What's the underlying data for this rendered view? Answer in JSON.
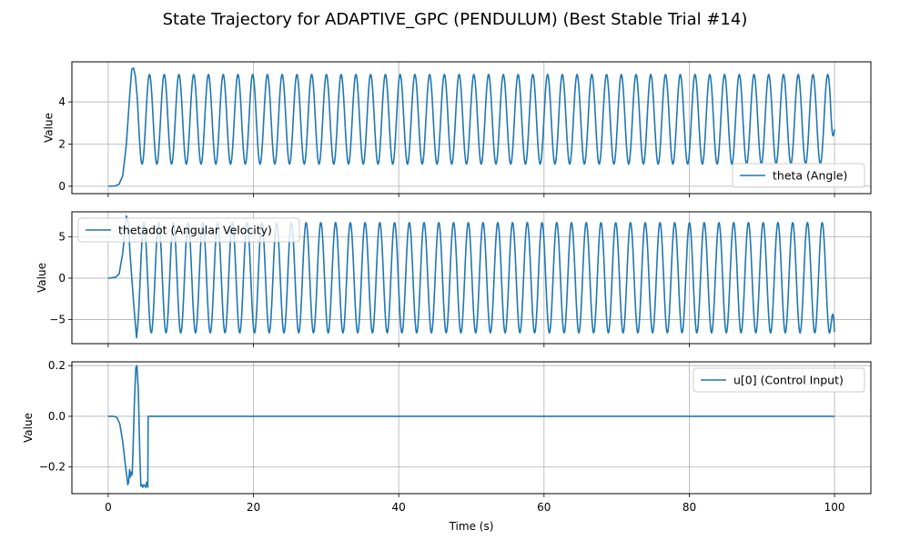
{
  "figure": {
    "title": "State Trajectory for ADAPTIVE_GPC (PENDULUM) (Best Stable Trial #14)",
    "colors": {
      "series": "#1f77b4",
      "grid": "#b0b0b0",
      "frame": "#000000"
    }
  },
  "chart_data": [
    {
      "type": "line",
      "title": "",
      "xlabel": "",
      "ylabel": "Value",
      "xlim": [
        -5,
        105
      ],
      "ylim": [
        -0.35,
        5.9
      ],
      "xticks": [
        0,
        20,
        40,
        60,
        80,
        100
      ],
      "xtick_labels_shown": false,
      "yticks": [
        0,
        2,
        4
      ],
      "grid": true,
      "legend": "lower-right",
      "series": [
        {
          "name": "theta (Angle)",
          "color": "#1f77b4",
          "x": [
            0.0,
            1.0,
            1.5,
            2.0,
            2.5,
            3.0,
            3.25,
            3.5,
            3.75,
            4.25,
            4.6,
            4.9,
            5.6,
            6.0,
            6.6,
            7.0,
            7.6,
            8.0,
            8.6,
            9.0,
            9.6,
            10.0,
            12.0,
            20.0,
            40.0,
            60.0,
            80.0,
            100.0
          ],
          "values": [
            0.0,
            0.02,
            0.1,
            0.5,
            2.0,
            4.5,
            5.55,
            5.6,
            5.2,
            2.5,
            0.8,
            1.2,
            5.3,
            5.0,
            1.05,
            1.1,
            5.3,
            5.2,
            1.1,
            1.1,
            5.3,
            5.25,
            5.3,
            5.3,
            5.32,
            5.3,
            5.3,
            2.7
          ],
          "periodic_segment": {
            "start": 4.0,
            "end": 100.0,
            "period": 2.03,
            "min": 1.05,
            "max": 5.3,
            "final_value": 2.7
          }
        }
      ]
    },
    {
      "type": "line",
      "title": "",
      "xlabel": "",
      "ylabel": "Value",
      "xlim": [
        -5,
        105
      ],
      "ylim": [
        -7.9,
        8.0
      ],
      "xticks": [
        0,
        20,
        40,
        60,
        80,
        100
      ],
      "xtick_labels_shown": false,
      "yticks": [
        -5,
        0,
        5
      ],
      "grid": true,
      "legend": "upper-left",
      "series": [
        {
          "name": "thetadot (Angular Velocity)",
          "color": "#1f77b4",
          "x": [
            0.0,
            1.0,
            1.5,
            2.0,
            2.5,
            2.8,
            3.0,
            3.5,
            3.9,
            4.2,
            5.0,
            5.5,
            6.0,
            7.0,
            20.0,
            40.0,
            60.0,
            80.0,
            100.0
          ],
          "values": [
            0.0,
            0.1,
            0.5,
            3.0,
            7.5,
            6.5,
            3.0,
            -3.0,
            -7.2,
            -6.0,
            6.5,
            6.7,
            0.0,
            -6.6,
            6.7,
            6.7,
            6.7,
            6.7,
            -6.5
          ],
          "periodic_segment": {
            "start": 4.0,
            "end": 100.0,
            "period": 2.03,
            "min": -6.6,
            "max": 6.7,
            "final_value": -6.5
          }
        }
      ]
    },
    {
      "type": "line",
      "title": "",
      "xlabel": "Time (s)",
      "ylabel": "Value",
      "xlim": [
        -5,
        105
      ],
      "ylim": [
        -0.305,
        0.215
      ],
      "xticks": [
        0,
        20,
        40,
        60,
        80,
        100
      ],
      "xtick_labels": [
        "0",
        "20",
        "40",
        "60",
        "80",
        "100"
      ],
      "yticks": [
        -0.2,
        0.0,
        0.2
      ],
      "ytick_labels": [
        "−0.2",
        "0.0",
        "0.2"
      ],
      "grid": true,
      "legend": "upper-right",
      "series": [
        {
          "name": "u[0] (Control Input)",
          "color": "#1f77b4",
          "x": [
            0.0,
            0.8,
            1.2,
            1.6,
            2.0,
            2.4,
            2.7,
            2.8,
            2.95,
            3.05,
            3.2,
            3.3,
            3.45,
            3.6,
            3.8,
            3.95,
            4.15,
            4.35,
            4.5,
            4.6,
            4.75,
            4.9,
            5.05,
            5.15,
            5.3,
            5.45,
            5.5,
            100.0
          ],
          "values": [
            0.0,
            0.0,
            -0.005,
            -0.03,
            -0.1,
            -0.2,
            -0.27,
            -0.26,
            -0.21,
            -0.24,
            -0.22,
            -0.23,
            -0.1,
            0.05,
            0.19,
            0.2,
            0.1,
            -0.15,
            -0.275,
            -0.27,
            -0.28,
            -0.27,
            -0.275,
            -0.28,
            -0.26,
            -0.28,
            0.0,
            0.0
          ]
        }
      ]
    }
  ]
}
